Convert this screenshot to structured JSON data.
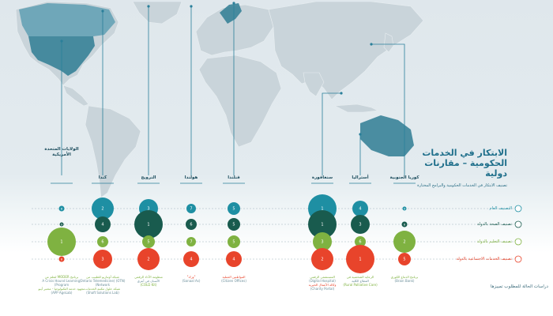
{
  "title": "الابتكار في الخدمات الحكومية – مقارنات دولية",
  "subtitle": "تصنيف الابتكار في الخدمات الحكومية والبرامج المختارة",
  "side_note": "دراسات الحالة للمطلوب تمييزها",
  "colors": {
    "general": "#1e8fa3",
    "health": "#195b4e",
    "education": "#7fb241",
    "social": "#e8442b",
    "map_land": "#c9d4da",
    "highlight": "#2f7c93",
    "line": "#2a7f9a"
  },
  "icons": {
    "general": "refresh-icon",
    "health": "heart-plus-icon",
    "education": "graduation-cap-icon",
    "social": "handshake-icon"
  },
  "chart_data": {
    "type": "bubble",
    "countries": [
      "الولايات المتحدة الأمريكية",
      "كندا",
      "النرويج",
      "هولندا",
      "فنلندا",
      "سنغافورة",
      "أستراليا",
      "كوريا الجنوبية"
    ],
    "rows": [
      {
        "name": "التصنيف العام",
        "icon": "refresh-icon",
        "color": "#1e8fa3",
        "values": [
          8,
          2,
          3,
          7,
          5,
          1,
          4,
          9
        ]
      },
      {
        "name": "تصنيف الصحة بالدولة",
        "icon": "heart-plus-icon",
        "color": "#195b4e",
        "values": [
          9,
          4,
          1,
          6,
          5,
          1,
          3,
          8
        ]
      },
      {
        "name": "تصنيف التعليم بالدولة",
        "icon": "graduation-cap-icon",
        "color": "#7fb241",
        "values": [
          1,
          6,
          5,
          7,
          5,
          3,
          6,
          2
        ]
      },
      {
        "name": "تصنيف الخدمات الاجتماعية بالدولة",
        "icon": "handshake-icon",
        "color": "#e8442b",
        "values": [
          8,
          3,
          2,
          4,
          4,
          2,
          1,
          5
        ]
      }
    ],
    "examples": [
      [
        "برنامج MODER لتعلم من",
        "(A Crisis Hound Learning Program)",
        "مجهود خدمة التكنولوجيا - مختبر أيبو",
        "(APP AgeLab)"
      ],
      [
        "شبكة أونتاريو للطبيب من",
        "(OTN) (Ontario Telemedicine Network)",
        "شبكة حلول مكتبة الخدمات",
        "(Shaft Solutions Lab)"
      ],
      [
        "منظومة الأداء الرقمي",
        "الأسنان في أنتري",
        "(COLD Kit)"
      ],
      [
        "\"ورك\"",
        "(Sonaal As)"
      ],
      [
        "المواطنين العملية",
        "(Citizen Offices)"
      ],
      [
        "المستشفى الرقمي",
        "(Digital Hospital)",
        "وكالة الأعمال الخيرية",
        "(Charity Portal)"
      ],
      [
        "الرعاية الشخصية في",
        "القطاع الكلية",
        "(Rural Palliative Care)"
      ],
      [
        "برنامج الدماغ الكوري",
        "(Brain Bank)"
      ]
    ]
  }
}
